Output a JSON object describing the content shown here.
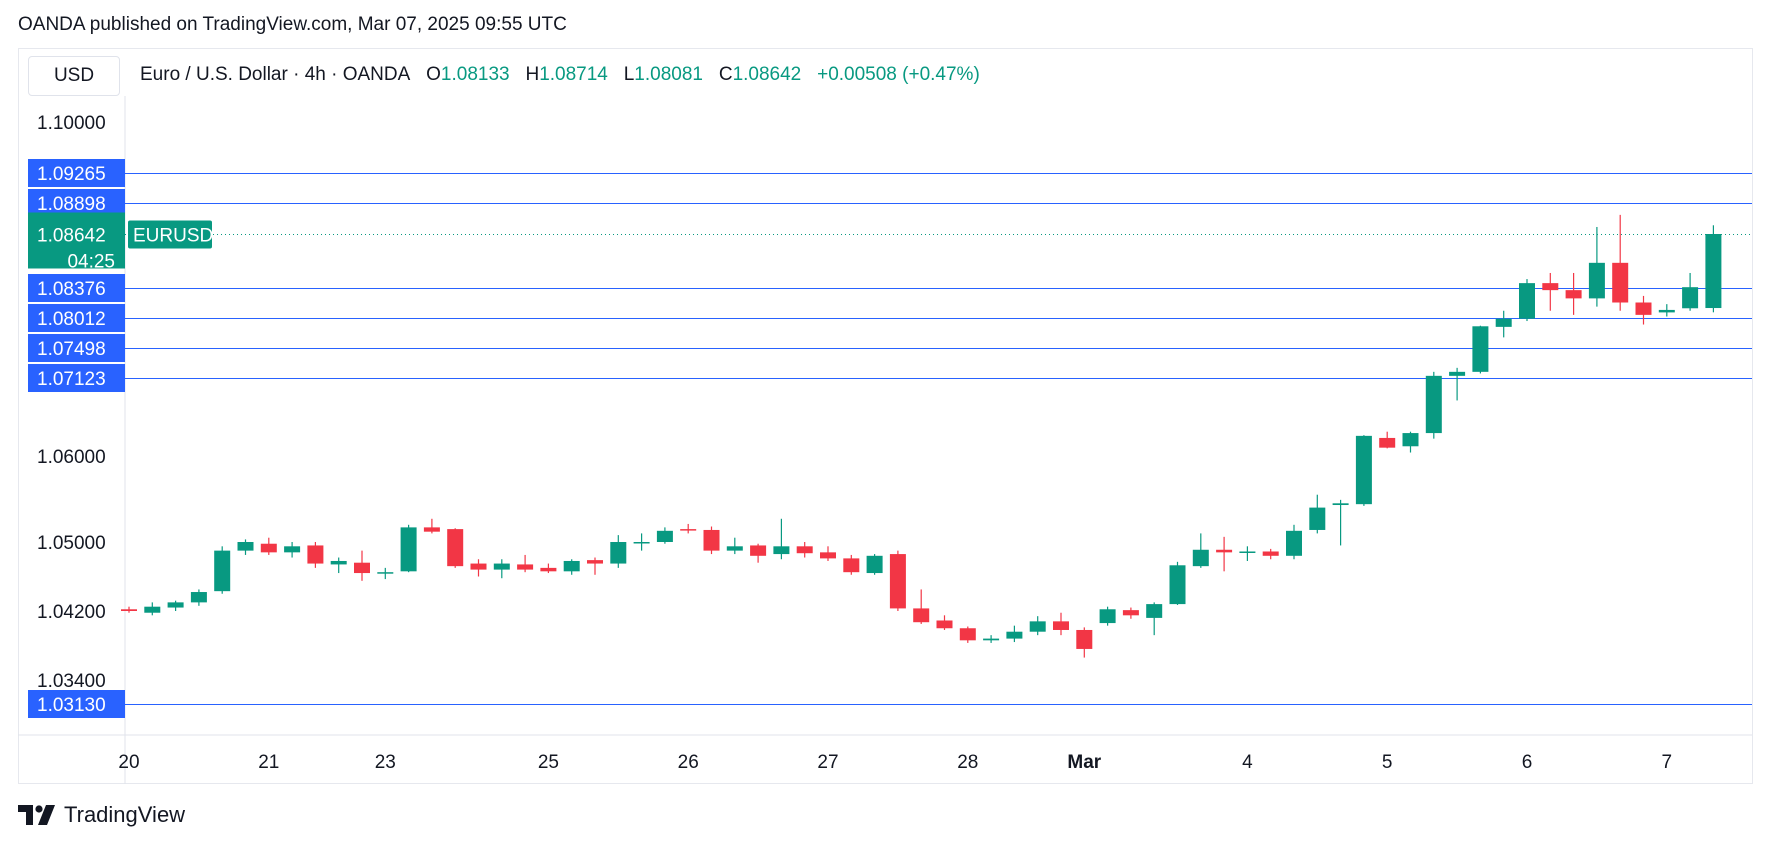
{
  "publisher_line": "OANDA published on TradingView.com, Mar 07, 2025 09:55 UTC",
  "currency": "USD",
  "legend": {
    "instrument": "Euro / U.S. Dollar · 4h · OANDA",
    "o_label": "O",
    "o": "1.08133",
    "h_label": "H",
    "h": "1.08714",
    "l_label": "L",
    "l": "1.08081",
    "c_label": "C",
    "c": "1.08642",
    "change": "+0.00508 (+0.47%)"
  },
  "footer_brand": "TradingView",
  "colors": {
    "up": "#089981",
    "down": "#f23645",
    "level": "#2962ff",
    "price_tag": "#089981"
  },
  "chart_data": {
    "type": "candlestick",
    "symbol": "EURUSD",
    "last_price": "1.08642",
    "countdown": "04:25",
    "y_ticks": [
      "1.10000",
      "1.06000",
      "1.05000",
      "1.04200",
      "1.03400"
    ],
    "y_tick_values": [
      1.1,
      1.06,
      1.05,
      1.042,
      1.034
    ],
    "levels": [
      1.09265,
      1.08898,
      1.08376,
      1.08012,
      1.07498,
      1.07123,
      1.0313
    ],
    "level_labels": [
      "1.09265",
      "1.08898",
      "1.08376",
      "1.08012",
      "1.07498",
      "1.07123",
      "1.03130"
    ],
    "x_labels": [
      {
        "label": "20",
        "index": 0
      },
      {
        "label": "21",
        "index": 6
      },
      {
        "label": "23",
        "index": 11
      },
      {
        "label": "25",
        "index": 18
      },
      {
        "label": "26",
        "index": 24
      },
      {
        "label": "27",
        "index": 30
      },
      {
        "label": "28",
        "index": 36
      },
      {
        "label": "Mar",
        "index": 41
      },
      {
        "label": "4",
        "index": 48
      },
      {
        "label": "5",
        "index": 54
      },
      {
        "label": "6",
        "index": 60
      },
      {
        "label": "7",
        "index": 66
      }
    ],
    "candles": [
      [
        1.0422,
        1.0425,
        1.0418,
        1.042
      ],
      [
        1.0418,
        1.043,
        1.0415,
        1.0425
      ],
      [
        1.0424,
        1.0432,
        1.042,
        1.043
      ],
      [
        1.043,
        1.0445,
        1.0426,
        1.0442
      ],
      [
        1.0443,
        1.0495,
        1.044,
        1.049
      ],
      [
        1.049,
        1.0503,
        1.0485,
        1.05
      ],
      [
        1.0498,
        1.0505,
        1.0485,
        1.0488
      ],
      [
        1.0488,
        1.05,
        1.0482,
        1.0495
      ],
      [
        1.0496,
        1.05,
        1.047,
        1.0475
      ],
      [
        1.0474,
        1.0482,
        1.0464,
        1.0478
      ],
      [
        1.0476,
        1.049,
        1.0455,
        1.0464
      ],
      [
        1.0464,
        1.047,
        1.0457,
        1.0465
      ],
      [
        1.0466,
        1.052,
        1.0465,
        1.0517
      ],
      [
        1.0517,
        1.0527,
        1.051,
        1.0512
      ],
      [
        1.0515,
        1.0516,
        1.047,
        1.0472
      ],
      [
        1.0475,
        1.048,
        1.046,
        1.0468
      ],
      [
        1.0468,
        1.048,
        1.0458,
        1.0475
      ],
      [
        1.0474,
        1.0485,
        1.0465,
        1.0468
      ],
      [
        1.047,
        1.0475,
        1.0464,
        1.0466
      ],
      [
        1.0466,
        1.048,
        1.0462,
        1.0478
      ],
      [
        1.0479,
        1.0482,
        1.0462,
        1.0475
      ],
      [
        1.0475,
        1.0508,
        1.047,
        1.05
      ],
      [
        1.05,
        1.051,
        1.049,
        1.05
      ],
      [
        1.05,
        1.0517,
        1.0498,
        1.0513
      ],
      [
        1.0515,
        1.0521,
        1.051,
        1.0514
      ],
      [
        1.0514,
        1.0518,
        1.0486,
        1.049
      ],
      [
        1.049,
        1.0505,
        1.0486,
        1.0495
      ],
      [
        1.0496,
        1.0498,
        1.0476,
        1.0484
      ],
      [
        1.0486,
        1.0527,
        1.048,
        1.0495
      ],
      [
        1.0495,
        1.05,
        1.0482,
        1.0487
      ],
      [
        1.0488,
        1.0495,
        1.0478,
        1.0481
      ],
      [
        1.0481,
        1.0485,
        1.0462,
        1.0465
      ],
      [
        1.0464,
        1.0486,
        1.0462,
        1.0484
      ],
      [
        1.0486,
        1.049,
        1.042,
        1.0423
      ],
      [
        1.0423,
        1.0445,
        1.0405,
        1.0407
      ],
      [
        1.0409,
        1.0415,
        1.0398,
        1.04
      ],
      [
        1.04,
        1.0402,
        1.0383,
        1.0386
      ],
      [
        1.0386,
        1.0392,
        1.0383,
        1.0388
      ],
      [
        1.0388,
        1.0403,
        1.0384,
        1.0396
      ],
      [
        1.0396,
        1.0414,
        1.0392,
        1.0408
      ],
      [
        1.0408,
        1.0418,
        1.0392,
        1.0398
      ],
      [
        1.0398,
        1.0401,
        1.0366,
        1.0376
      ],
      [
        1.0406,
        1.0425,
        1.0403,
        1.0422
      ],
      [
        1.0421,
        1.0424,
        1.0411,
        1.0415
      ],
      [
        1.0412,
        1.043,
        1.0392,
        1.0428
      ],
      [
        1.0428,
        1.0477,
        1.0427,
        1.0473
      ],
      [
        1.0472,
        1.051,
        1.047,
        1.0491
      ],
      [
        1.0491,
        1.0506,
        1.0466,
        1.0488
      ],
      [
        1.0488,
        1.0495,
        1.0478,
        1.0489
      ],
      [
        1.0489,
        1.0492,
        1.048,
        1.0484
      ],
      [
        1.0484,
        1.052,
        1.048,
        1.0513
      ],
      [
        1.0514,
        1.0555,
        1.051,
        1.054
      ],
      [
        1.0543,
        1.0549,
        1.0496,
        1.0545
      ],
      [
        1.0544,
        1.063,
        1.0542,
        1.0629
      ],
      [
        1.0626,
        1.0635,
        1.0611,
        1.0612
      ],
      [
        1.0614,
        1.0635,
        1.0605,
        1.0633
      ],
      [
        1.0633,
        1.072,
        1.0625,
        1.0715
      ],
      [
        1.0715,
        1.0725,
        1.068,
        1.072
      ],
      [
        1.072,
        1.0788,
        1.0718,
        1.0787
      ],
      [
        1.0786,
        1.081,
        1.0768,
        1.08
      ],
      [
        1.08,
        1.0842,
        1.0796,
        1.084
      ],
      [
        1.084,
        1.0845,
        1.081,
        1.0835
      ],
      [
        1.0835,
        1.0845,
        1.0805,
        1.0825
      ],
      [
        1.0825,
        1.087,
        1.0815,
        1.085
      ],
      [
        1.085,
        1.088,
        1.081,
        1.082
      ],
      [
        1.082,
        1.0828,
        1.079,
        1.0805
      ],
      [
        1.0808,
        1.0818,
        1.0803,
        1.0811
      ],
      [
        1.0813,
        1.0845,
        1.081,
        1.0838
      ],
      [
        1.08133,
        1.08714,
        1.08081,
        1.08642
      ]
    ]
  }
}
